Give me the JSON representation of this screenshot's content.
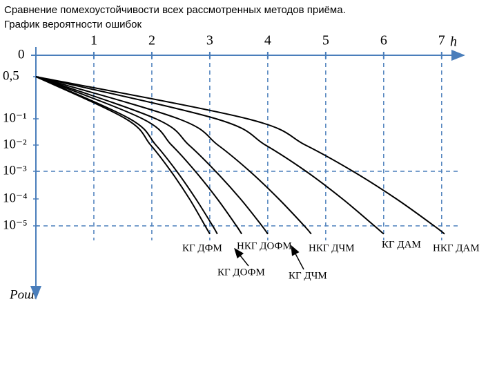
{
  "chart_data": {
    "type": "line",
    "title": "Сравнение помехоустойчивости всех рассмотренных методов приёма.",
    "subtitle": "График вероятности ошибок",
    "x_label": "h",
    "y_label": "Pош.",
    "origin_label": "0",
    "xlim": [
      0,
      7.3
    ],
    "xticks": [
      1,
      2,
      3,
      4,
      5,
      6,
      7
    ],
    "ylog": true,
    "yticks": [
      {
        "value": 0.5,
        "label": "0,5"
      },
      {
        "value": 0.1,
        "label": "10⁻¹"
      },
      {
        "value": 0.01,
        "label": "10⁻²"
      },
      {
        "value": 0.001,
        "label": "10⁻³"
      },
      {
        "value": 0.0001,
        "label": "10⁻⁴"
      },
      {
        "value": 1e-05,
        "label": "10⁻⁵"
      }
    ],
    "grid_x": true,
    "reference_lines": [
      0.001,
      1e-05
    ],
    "axis_color": "#4a7ebb",
    "y": [
      0.5,
      0.1,
      0.01,
      0.001,
      0.0001,
      1e-05,
      5e-06
    ],
    "series": [
      {
        "name": "КГ ДФМ",
        "color": "#000000",
        "x": [
          0,
          1.55,
          1.98,
          2.33,
          2.65,
          2.92,
          3.0
        ]
      },
      {
        "name": "КГ ДОФМ",
        "color": "#000000",
        "x": [
          0,
          1.62,
          2.07,
          2.43,
          2.76,
          3.05,
          3.13
        ]
      },
      {
        "name": "НКГ ДОФМ",
        "color": "#000000",
        "x": [
          0,
          1.84,
          2.34,
          2.75,
          3.13,
          3.46,
          3.55
        ]
      },
      {
        "name": "КГ ДЧМ",
        "color": "#000000",
        "x": [
          0,
          2.07,
          2.64,
          3.1,
          3.53,
          3.9,
          4.0
        ]
      },
      {
        "name": "НКГ ДЧМ",
        "color": "#000000",
        "x": [
          0,
          2.46,
          3.14,
          3.69,
          4.19,
          4.63,
          4.75
        ]
      },
      {
        "name": "КГ ДАМ",
        "color": "#000000",
        "x": [
          0,
          3.11,
          3.96,
          4.66,
          5.29,
          5.84,
          6.0
        ]
      },
      {
        "name": "НКГ ДАМ",
        "color": "#000000",
        "x": [
          0,
          3.65,
          4.65,
          5.47,
          6.22,
          6.87,
          7.05
        ]
      }
    ]
  }
}
